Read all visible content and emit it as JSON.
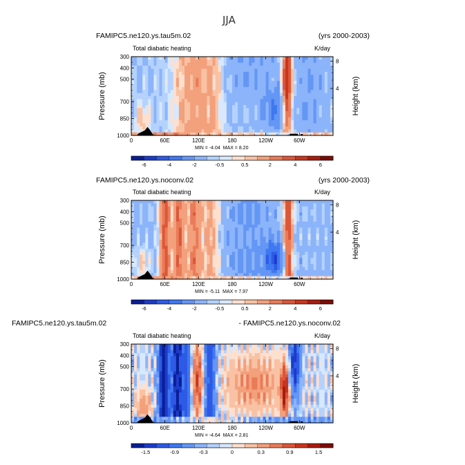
{
  "figure": {
    "title": "JJA",
    "palette": [
      "#0a1e96",
      "#1c3cc8",
      "#2d5ae6",
      "#3f78f0",
      "#6496f5",
      "#8cb4fa",
      "#b4d2fc",
      "#d8e8fd",
      "#fde0cf",
      "#f9c2a4",
      "#f3a07c",
      "#ea7b58",
      "#dc563a",
      "#c8351e",
      "#a81c0f",
      "#7d0c04"
    ],
    "land_color": "#000000"
  },
  "panels": [
    {
      "case_left": "FAMIPC5.ne120.ys.tau5m.02",
      "case_right": "(yrs 2000-2003)",
      "subtitle": "Total diabatic heating",
      "units": "K/day",
      "min_label": "MIN =",
      "min_value": "-4.04",
      "max_label": "MAX =",
      "max_value": "8.20",
      "cb_labels": [
        "-6",
        "-4",
        "-2",
        "-0.5",
        "0.5",
        "2",
        "4",
        "6"
      ]
    },
    {
      "case_left": "FAMIPC5.ne120.ys.noconv.02",
      "case_right": "(yrs 2000-2003)",
      "subtitle": "Total diabatic heating",
      "units": "K/day",
      "min_label": "MIN =",
      "min_value": "-5.11",
      "max_label": "MAX =",
      "max_value": "7.97",
      "cb_labels": [
        "-6",
        "-4",
        "-2",
        "-0.5",
        "0.5",
        "2",
        "4",
        "6"
      ]
    },
    {
      "case_left": "FAMIPC5.ne120.ys.tau5m.02",
      "case_right": "- FAMIPC5.ne120.ys.noconv.02",
      "subtitle": "Total diabatic heating",
      "units": "K/day",
      "min_label": "MIN =",
      "min_value": "-4.64",
      "max_label": "MAX =",
      "max_value": "2.81",
      "cb_labels": [
        "-1.5",
        "-0.9",
        "-0.3",
        "0",
        "0.3",
        "0.9",
        "1.5"
      ]
    }
  ],
  "chart_data": [
    {
      "type": "heatmap",
      "title": "FAMIPC5.ne120.ys.tau5m.02 (yrs 2000-2003) - Total diabatic heating",
      "xlabel": "",
      "ylabel": "Pressure (mb)",
      "y2label": "Height (km)",
      "x_ticks": [
        "0",
        "60E",
        "120E",
        "180",
        "120W",
        "60W"
      ],
      "x_tick_lon": [
        0,
        60,
        120,
        180,
        240,
        300
      ],
      "xlim": [
        0,
        360
      ],
      "y_ticks": [
        300,
        400,
        500,
        700,
        850,
        1000
      ],
      "ylim": [
        1000,
        300
      ],
      "y2_ticks": [
        8,
        4
      ],
      "units": "K/day",
      "min": -4.04,
      "max": 8.2,
      "levels": [
        -7,
        -6,
        -5,
        -4,
        -3,
        -2,
        -1,
        -0.5,
        0,
        0.5,
        1,
        2,
        3,
        4,
        5,
        6,
        7
      ],
      "colorbar_labels": [
        "-6",
        "-4",
        "-2",
        "-0.5",
        "0.5",
        "2",
        "4",
        "6"
      ]
    },
    {
      "type": "heatmap",
      "title": "FAMIPC5.ne120.ys.noconv.02 (yrs 2000-2003) - Total diabatic heating",
      "xlabel": "",
      "ylabel": "Pressure (mb)",
      "y2label": "Height (km)",
      "x_ticks": [
        "0",
        "60E",
        "120E",
        "180",
        "120W",
        "60W"
      ],
      "x_tick_lon": [
        0,
        60,
        120,
        180,
        240,
        300
      ],
      "xlim": [
        0,
        360
      ],
      "y_ticks": [
        300,
        400,
        500,
        700,
        850,
        1000
      ],
      "ylim": [
        1000,
        300
      ],
      "y2_ticks": [
        8,
        4
      ],
      "units": "K/day",
      "min": -5.11,
      "max": 7.97,
      "levels": [
        -7,
        -6,
        -5,
        -4,
        -3,
        -2,
        -1,
        -0.5,
        0,
        0.5,
        1,
        2,
        3,
        4,
        5,
        6,
        7
      ],
      "colorbar_labels": [
        "-6",
        "-4",
        "-2",
        "-0.5",
        "0.5",
        "2",
        "4",
        "6"
      ]
    },
    {
      "type": "heatmap",
      "title": "FAMIPC5.ne120.ys.tau5m.02 - FAMIPC5.ne120.ys.noconv.02 - Total diabatic heating",
      "xlabel": "",
      "ylabel": "Pressure (mb)",
      "y2label": "Height (km)",
      "x_ticks": [
        "0",
        "60E",
        "120E",
        "180",
        "120W",
        "60W"
      ],
      "x_tick_lon": [
        0,
        60,
        120,
        180,
        240,
        300
      ],
      "xlim": [
        0,
        360
      ],
      "y_ticks": [
        300,
        400,
        500,
        700,
        850,
        1000
      ],
      "ylim": [
        1000,
        300
      ],
      "y2_ticks": [
        8,
        4
      ],
      "units": "K/day",
      "min": -4.64,
      "max": 2.81,
      "levels": [
        -1.8,
        -1.5,
        -1.2,
        -0.9,
        -0.6,
        -0.3,
        -0.1,
        0,
        0.1,
        0.3,
        0.6,
        0.9,
        1.2,
        1.5,
        1.8
      ],
      "colorbar_labels": [
        "-1.5",
        "-0.9",
        "-0.3",
        "0",
        "0.3",
        "0.9",
        "1.5"
      ]
    }
  ]
}
